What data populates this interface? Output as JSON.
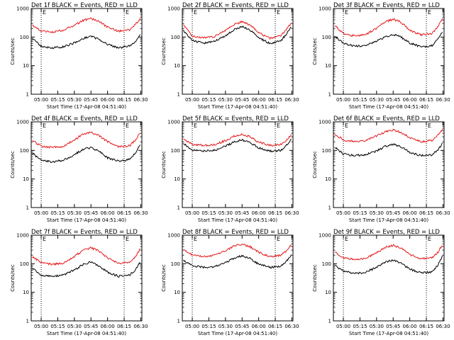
{
  "colors": {
    "events": "#000000",
    "lld": "#e41a1c",
    "background": "#ffffff",
    "axes": "#000000"
  },
  "chart_data": [
    {
      "type": "line",
      "title": "Det 1f BLACK = Events, RED = LLD",
      "xlabel": "Start Time (17-Apr-08 04:51:40)",
      "ylabel": "Counts/sec",
      "xticks": [
        "05:00",
        "05:15",
        "05:30",
        "05:45",
        "06:00",
        "06:15",
        "06:30"
      ],
      "yticks": [
        "1",
        "10",
        "100",
        "1000"
      ],
      "yscale": "log",
      "ylim": [
        1,
        1000
      ],
      "markers": [
        {
          "label": "E",
          "time": "05:00"
        },
        {
          "label": "E",
          "time": "06:15"
        }
      ],
      "series": [
        {
          "color": "#000000",
          "time": [
            "04:52",
            "05:00",
            "05:10",
            "05:20",
            "05:30",
            "05:38",
            "05:45",
            "05:52",
            "06:00",
            "06:10",
            "06:20",
            "06:25",
            "06:30"
          ],
          "values": [
            90,
            48,
            42,
            46,
            62,
            90,
            105,
            85,
            55,
            42,
            48,
            70,
            130
          ]
        },
        {
          "color": "#e41a1c",
          "time": [
            "04:52",
            "05:00",
            "05:10",
            "05:20",
            "05:30",
            "05:38",
            "05:45",
            "05:52",
            "06:00",
            "06:10",
            "06:20",
            "06:25",
            "06:30"
          ],
          "values": [
            260,
            165,
            150,
            175,
            260,
            380,
            450,
            360,
            220,
            160,
            180,
            270,
            480
          ]
        }
      ]
    },
    {
      "type": "line",
      "title": "Det 2f BLACK = Events, RED = LLD",
      "xlabel": "Start Time (17-Apr-08 04:51:40)",
      "ylabel": "Counts/sec",
      "xticks": [
        "05:00",
        "05:15",
        "05:30",
        "05:45",
        "06:00",
        "06:15",
        "06:30"
      ],
      "yticks": [
        "1",
        "10",
        "100",
        "1000"
      ],
      "yscale": "log",
      "ylim": [
        1,
        1000
      ],
      "markers": [
        {
          "label": "E",
          "time": "05:00"
        },
        {
          "label": "E",
          "time": "06:15"
        }
      ],
      "series": [
        {
          "color": "#000000",
          "time": [
            "04:52",
            "05:00",
            "05:10",
            "05:20",
            "05:30",
            "05:38",
            "05:45",
            "05:52",
            "06:00",
            "06:10",
            "06:20",
            "06:25",
            "06:30"
          ],
          "values": [
            170,
            75,
            62,
            70,
            110,
            190,
            230,
            180,
            95,
            60,
            72,
            130,
            230
          ]
        },
        {
          "color": "#e41a1c",
          "time": [
            "04:52",
            "05:00",
            "05:10",
            "05:20",
            "05:30",
            "05:38",
            "05:45",
            "05:52",
            "06:00",
            "06:10",
            "06:20",
            "06:25",
            "06:30"
          ],
          "values": [
            260,
            110,
            92,
            105,
            170,
            280,
            340,
            270,
            140,
            92,
            110,
            190,
            330
          ]
        }
      ]
    },
    {
      "type": "line",
      "title": "Det 3f BLACK = Events, RED = LLD",
      "xlabel": "Start Time (17-Apr-08 04:51:40)",
      "ylabel": "Counts/sec",
      "xticks": [
        "05:00",
        "05:15",
        "05:30",
        "05:45",
        "06:00",
        "06:15",
        "06:30"
      ],
      "yticks": [
        "1",
        "10",
        "100",
        "1000"
      ],
      "yscale": "log",
      "ylim": [
        1,
        1000
      ],
      "markers": [
        {
          "label": "E",
          "time": "05:00"
        },
        {
          "label": "E",
          "time": "06:15"
        }
      ],
      "series": [
        {
          "color": "#000000",
          "time": [
            "04:52",
            "05:00",
            "05:10",
            "05:20",
            "05:30",
            "05:38",
            "05:45",
            "05:52",
            "06:00",
            "06:10",
            "06:20",
            "06:25",
            "06:30"
          ],
          "values": [
            110,
            60,
            48,
            50,
            70,
            105,
            125,
            100,
            62,
            45,
            50,
            80,
            160
          ]
        },
        {
          "color": "#e41a1c",
          "time": [
            "04:52",
            "05:00",
            "05:10",
            "05:20",
            "05:30",
            "05:38",
            "05:45",
            "05:52",
            "06:00",
            "06:10",
            "06:20",
            "06:25",
            "06:30"
          ],
          "values": [
            260,
            130,
            110,
            120,
            200,
            350,
            420,
            330,
            175,
            120,
            130,
            220,
            480
          ]
        }
      ]
    },
    {
      "type": "line",
      "title": "Det 4f BLACK = Events, RED = LLD",
      "xlabel": "Start Time (17-Apr-08 04:51:40)",
      "ylabel": "Counts/sec",
      "xticks": [
        "05:00",
        "05:15",
        "05:30",
        "05:45",
        "06:00",
        "06:15",
        "06:30"
      ],
      "yticks": [
        "1",
        "10",
        "100",
        "1000"
      ],
      "yscale": "log",
      "ylim": [
        1,
        1000
      ],
      "markers": [
        {
          "label": "E",
          "time": "05:00"
        },
        {
          "label": "E",
          "time": "06:15"
        }
      ],
      "series": [
        {
          "color": "#000000",
          "time": [
            "04:52",
            "05:00",
            "05:10",
            "05:20",
            "05:30",
            "05:38",
            "05:45",
            "05:52",
            "06:00",
            "06:10",
            "06:20",
            "06:25",
            "06:30"
          ],
          "values": [
            80,
            45,
            40,
            45,
            70,
            110,
            125,
            95,
            55,
            42,
            48,
            80,
            180
          ]
        },
        {
          "color": "#e41a1c",
          "time": [
            "04:52",
            "05:00",
            "05:10",
            "05:20",
            "05:30",
            "05:38",
            "05:45",
            "05:52",
            "06:00",
            "06:10",
            "06:20",
            "06:25",
            "06:30"
          ],
          "values": [
            220,
            140,
            125,
            140,
            230,
            380,
            430,
            340,
            200,
            135,
            145,
            230,
            450
          ]
        }
      ]
    },
    {
      "type": "line",
      "title": "Det 5f BLACK = Events, RED = LLD",
      "xlabel": "Start Time (17-Apr-08 04:51:40)",
      "ylabel": "Counts/sec",
      "xticks": [
        "05:00",
        "05:15",
        "05:30",
        "05:45",
        "06:00",
        "06:15",
        "06:30"
      ],
      "yticks": [
        "1",
        "10",
        "100",
        "1000"
      ],
      "yscale": "log",
      "ylim": [
        1,
        1000
      ],
      "markers": [
        {
          "label": "E",
          "time": "05:00"
        },
        {
          "label": "E",
          "time": "06:15"
        }
      ],
      "series": [
        {
          "color": "#000000",
          "time": [
            "04:52",
            "05:00",
            "05:10",
            "05:20",
            "05:30",
            "05:38",
            "05:45",
            "05:52",
            "06:00",
            "06:10",
            "06:20",
            "06:25",
            "06:30"
          ],
          "values": [
            170,
            105,
            95,
            100,
            140,
            200,
            230,
            190,
            125,
            95,
            100,
            150,
            260
          ]
        },
        {
          "color": "#e41a1c",
          "time": [
            "04:52",
            "05:00",
            "05:10",
            "05:20",
            "05:30",
            "05:38",
            "05:45",
            "05:52",
            "06:00",
            "06:10",
            "06:20",
            "06:25",
            "06:30"
          ],
          "values": [
            250,
            165,
            150,
            160,
            220,
            320,
            360,
            300,
            195,
            150,
            160,
            230,
            380
          ]
        }
      ]
    },
    {
      "type": "line",
      "title": "Det 6f BLACK = Events, RED = LLD",
      "xlabel": "Start Time (17-Apr-08 04:51:40)",
      "ylabel": "Counts/sec",
      "xticks": [
        "05:00",
        "05:15",
        "05:30",
        "05:45",
        "06:00",
        "06:15",
        "06:30"
      ],
      "yticks": [
        "1",
        "10",
        "100",
        "1000"
      ],
      "yscale": "log",
      "ylim": [
        1,
        1000
      ],
      "markers": [
        {
          "label": "E",
          "time": "05:00"
        },
        {
          "label": "E",
          "time": "06:15"
        }
      ],
      "series": [
        {
          "color": "#000000",
          "time": [
            "04:52",
            "05:00",
            "05:10",
            "05:20",
            "05:30",
            "05:38",
            "05:45",
            "05:52",
            "06:00",
            "06:10",
            "06:20",
            "06:25",
            "06:30"
          ],
          "values": [
            130,
            75,
            65,
            70,
            95,
            140,
            165,
            135,
            85,
            65,
            70,
            100,
            190
          ]
        },
        {
          "color": "#e41a1c",
          "time": [
            "04:52",
            "05:00",
            "05:10",
            "05:20",
            "05:30",
            "05:38",
            "05:45",
            "05:52",
            "06:00",
            "06:10",
            "06:20",
            "06:25",
            "06:30"
          ],
          "values": [
            380,
            230,
            205,
            220,
            320,
            450,
            520,
            430,
            280,
            205,
            220,
            320,
            560
          ]
        }
      ]
    },
    {
      "type": "line",
      "title": "Det 7f BLACK = Events, RED = LLD",
      "xlabel": "Start Time (17-Apr-08 04:51:40)",
      "ylabel": "Counts/sec",
      "xticks": [
        "05:00",
        "05:15",
        "05:30",
        "05:45",
        "06:00",
        "06:15",
        "06:30"
      ],
      "yticks": [
        "1",
        "10",
        "100",
        "1000"
      ],
      "yscale": "log",
      "ylim": [
        1,
        1000
      ],
      "markers": [
        {
          "label": "E",
          "time": "05:00"
        },
        {
          "label": "E",
          "time": "06:15"
        }
      ],
      "series": [
        {
          "color": "#000000",
          "time": [
            "04:52",
            "05:00",
            "05:10",
            "05:20",
            "05:30",
            "05:38",
            "05:45",
            "05:52",
            "06:00",
            "06:10",
            "06:20",
            "06:25",
            "06:30"
          ],
          "values": [
            70,
            40,
            35,
            40,
            60,
            95,
            115,
            85,
            50,
            36,
            40,
            60,
            130
          ]
        },
        {
          "color": "#e41a1c",
          "time": [
            "04:52",
            "05:00",
            "05:10",
            "05:20",
            "05:30",
            "05:38",
            "05:45",
            "05:52",
            "06:00",
            "06:10",
            "06:20",
            "06:25",
            "06:30"
          ],
          "values": [
            180,
            110,
            95,
            105,
            180,
            300,
            360,
            280,
            160,
            100,
            110,
            170,
            360
          ]
        }
      ]
    },
    {
      "type": "line",
      "title": "Det 8f BLACK = Events, RED = LLD",
      "xlabel": "Start Time (17-Apr-08 04:51:40)",
      "ylabel": "Counts/sec",
      "xticks": [
        "05:00",
        "05:15",
        "05:30",
        "05:45",
        "06:00",
        "06:15",
        "06:30"
      ],
      "yticks": [
        "1",
        "10",
        "100",
        "1000"
      ],
      "yscale": "log",
      "ylim": [
        1,
        1000
      ],
      "markers": [
        {
          "label": "E",
          "time": "05:00"
        },
        {
          "label": "E",
          "time": "06:15"
        }
      ],
      "series": [
        {
          "color": "#000000",
          "time": [
            "04:52",
            "05:00",
            "05:10",
            "05:20",
            "05:30",
            "05:38",
            "05:45",
            "05:52",
            "06:00",
            "06:10",
            "06:20",
            "06:25",
            "06:30"
          ],
          "values": [
            130,
            85,
            75,
            80,
            110,
            160,
            190,
            155,
            95,
            75,
            80,
            120,
            220
          ]
        },
        {
          "color": "#e41a1c",
          "time": [
            "04:52",
            "05:00",
            "05:10",
            "05:20",
            "05:30",
            "05:38",
            "05:45",
            "05:52",
            "06:00",
            "06:10",
            "06:20",
            "06:25",
            "06:30"
          ],
          "values": [
            310,
            200,
            180,
            195,
            290,
            420,
            480,
            400,
            250,
            180,
            195,
            280,
            520
          ]
        }
      ]
    },
    {
      "type": "line",
      "title": "Det 9f BLACK = Events, RED = LLD",
      "xlabel": "Start Time (17-Apr-08 04:51:40)",
      "ylabel": "Counts/sec",
      "xticks": [
        "05:00",
        "05:15",
        "05:30",
        "05:45",
        "06:00",
        "06:15",
        "06:30"
      ],
      "yticks": [
        "1",
        "10",
        "100",
        "1000"
      ],
      "yscale": "log",
      "ylim": [
        1,
        1000
      ],
      "markers": [
        {
          "label": "E",
          "time": "05:00"
        },
        {
          "label": "E",
          "time": "06:15"
        }
      ],
      "series": [
        {
          "color": "#000000",
          "time": [
            "04:52",
            "05:00",
            "05:10",
            "05:20",
            "05:30",
            "05:38",
            "05:45",
            "05:52",
            "06:00",
            "06:10",
            "06:20",
            "06:25",
            "06:30"
          ],
          "values": [
            90,
            55,
            45,
            50,
            75,
            115,
            135,
            105,
            65,
            48,
            52,
            85,
            200
          ]
        },
        {
          "color": "#e41a1c",
          "time": [
            "04:52",
            "05:00",
            "05:10",
            "05:20",
            "05:30",
            "05:38",
            "05:45",
            "05:52",
            "06:00",
            "06:10",
            "06:20",
            "06:25",
            "06:30"
          ],
          "values": [
            260,
            160,
            140,
            155,
            240,
            380,
            440,
            350,
            210,
            150,
            160,
            240,
            480
          ]
        }
      ]
    }
  ]
}
